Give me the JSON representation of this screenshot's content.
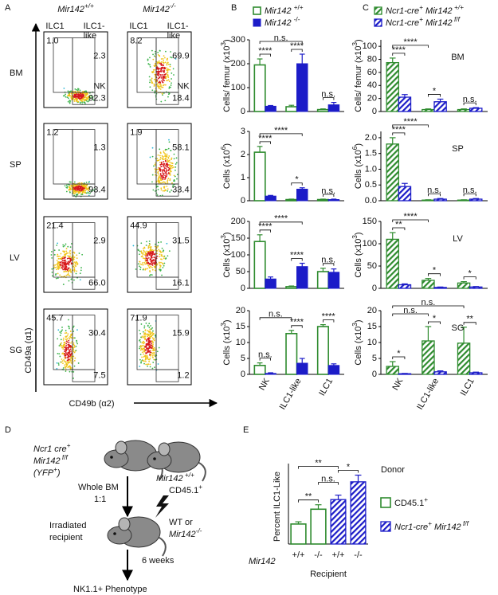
{
  "panel_letters": [
    "A",
    "B",
    "C",
    "D",
    "E"
  ],
  "panel_a": {
    "columns": [
      [
        [
          "Mir142",
          "i"
        ],
        [
          "+/+",
          "isup"
        ]
      ],
      [
        [
          "Mir142",
          "i"
        ],
        [
          "-/-",
          "isup"
        ]
      ]
    ],
    "gate_labels": [
      "ILC1",
      "ILC1-",
      "like",
      "NK"
    ],
    "rows": [
      {
        "tissue": "BM",
        "plots": [
          [
            "1.0",
            "2.3",
            "92.3"
          ],
          [
            "8.2",
            "69.9",
            "18.4"
          ]
        ]
      },
      {
        "tissue": "SP",
        "plots": [
          [
            "1.2",
            "1.3",
            "93.4"
          ],
          [
            "1.9",
            "58.1",
            "33.4"
          ]
        ]
      },
      {
        "tissue": "LV",
        "plots": [
          [
            "21.4",
            "2.9",
            "66.0"
          ],
          [
            "44.9",
            "31.5",
            "16.1"
          ]
        ]
      },
      {
        "tissue": "SG",
        "plots": [
          [
            "45.7",
            "30.4",
            "7.5"
          ],
          [
            "71.9",
            "15.9",
            "1.2"
          ]
        ]
      }
    ],
    "y_axis": "CD49a (α1)",
    "x_axis": "CD49b (α2)"
  },
  "panel_b": {
    "legend": [
      [
        [
          "Mir142 ",
          "i"
        ],
        [
          "+/+",
          "sup"
        ]
      ],
      [
        [
          "Mir142 ",
          "i"
        ],
        [
          "-/-",
          "sup"
        ]
      ]
    ],
    "colors": [
      "#2e8b2e",
      "#1c1cc8"
    ],
    "fills": [
      "outline",
      "solid"
    ],
    "categories": [
      "NK",
      "ILC1-like",
      "ILC1"
    ],
    "charts": [
      {
        "ylabel": [
          [
            "Cells/ femur (x10",
            ""
          ],
          [
            "3",
            "sup"
          ],
          [
            ")",
            ""
          ]
        ],
        "ylim": [
          0,
          300
        ],
        "yticks": [
          0,
          100,
          200,
          300
        ],
        "series": [
          {
            "values": [
              195,
              20,
              8
            ],
            "errors": [
              25,
              6,
              3
            ]
          },
          {
            "values": [
              22,
              200,
              28
            ],
            "errors": [
              3,
              40,
              10
            ]
          }
        ],
        "annotations": [
          "n.s.",
          "****",
          "****",
          "n.s."
        ]
      },
      {
        "ylabel": [
          [
            "Cells (x10",
            ""
          ],
          [
            "6",
            "sup"
          ],
          [
            ")",
            ""
          ]
        ],
        "ylim": [
          0,
          3
        ],
        "yticks": [
          0,
          1,
          2,
          3
        ],
        "series": [
          {
            "values": [
              2.1,
              0.05,
              0.05
            ],
            "errors": [
              0.25,
              0.02,
              0.02
            ]
          },
          {
            "values": [
              0.2,
              0.5,
              0.05
            ],
            "errors": [
              0.03,
              0.06,
              0.02
            ]
          }
        ],
        "annotations": [
          "****",
          "****",
          "*",
          "n.s."
        ]
      },
      {
        "ylabel": [
          [
            "Cells (x10",
            ""
          ],
          [
            "3",
            "sup"
          ],
          [
            ")",
            ""
          ]
        ],
        "ylim": [
          0,
          200
        ],
        "yticks": [
          0,
          50,
          100,
          150,
          200
        ],
        "series": [
          {
            "values": [
              140,
              5,
              50
            ],
            "errors": [
              20,
              2,
              10
            ]
          },
          {
            "values": [
              28,
              65,
              48
            ],
            "errors": [
              6,
              10,
              10
            ]
          }
        ],
        "annotations": [
          "****",
          "****",
          "****",
          "n.s."
        ]
      },
      {
        "ylabel": [
          [
            "Cells (x10",
            ""
          ],
          [
            "3",
            "sup"
          ],
          [
            ")",
            ""
          ]
        ],
        "ylim": [
          0,
          20
        ],
        "yticks": [
          0,
          5,
          10,
          15,
          20
        ],
        "series": [
          {
            "values": [
              2.8,
              12.8,
              15
            ],
            "errors": [
              0.8,
              1.0,
              0.6
            ]
          },
          {
            "values": [
              0.3,
              3.5,
              2.8
            ],
            "errors": [
              0.2,
              1.5,
              0.5
            ]
          }
        ],
        "annotations": [
          "n.s.",
          "n.s.",
          "****",
          "****"
        ]
      }
    ]
  },
  "panel_c": {
    "legend": [
      [
        [
          "Ncr1-cre",
          "i"
        ],
        [
          "+",
          "isup"
        ],
        [
          " Mir142",
          "i"
        ],
        [
          " +/+",
          "isup"
        ]
      ],
      [
        [
          "Ncr1-cre",
          "i"
        ],
        [
          "+",
          "isup"
        ],
        [
          " Mir142",
          "i"
        ],
        [
          " f/f",
          "isup"
        ]
      ]
    ],
    "colors": [
      "#2e8b2e",
      "#1c1cc8"
    ],
    "fills": [
      "hatch",
      "hatch"
    ],
    "categories": [
      "NK",
      "ILC1-like",
      "ILC1"
    ],
    "charts": [
      {
        "tissue": "BM",
        "ylabel": [
          [
            "Cells/ femur (x10",
            ""
          ],
          [
            "3",
            "sup"
          ],
          [
            ")",
            ""
          ]
        ],
        "ylim": [
          0,
          110
        ],
        "yticks": [
          0,
          20,
          40,
          60,
          80,
          100
        ],
        "series": [
          {
            "values": [
              75,
              3,
              3
            ],
            "errors": [
              7,
              1,
              1
            ]
          },
          {
            "values": [
              22,
              15,
              5
            ],
            "errors": [
              4,
              4,
              1
            ]
          }
        ],
        "annotations": [
          "****",
          "****",
          "*",
          "n.s."
        ]
      },
      {
        "tissue": "SP",
        "ylabel": [
          [
            "Cells (x10",
            ""
          ],
          [
            "6",
            "sup"
          ],
          [
            ")",
            ""
          ]
        ],
        "ylim": [
          0,
          2.2
        ],
        "yticks": [
          {
            "value": 0,
            "label": "0.0"
          },
          {
            "value": 0.5,
            "label": "0.5"
          },
          {
            "value": 1,
            "label": "1.0"
          },
          {
            "value": 1.5,
            "label": "1.5"
          },
          {
            "value": 2,
            "label": "2.0"
          }
        ],
        "series": [
          {
            "values": [
              1.8,
              0.02,
              0.02
            ],
            "errors": [
              0.2,
              0.01,
              0.01
            ]
          },
          {
            "values": [
              0.45,
              0.05,
              0.05
            ],
            "errors": [
              0.1,
              0.02,
              0.02
            ]
          }
        ],
        "annotations": [
          "****",
          "****",
          "n.s.",
          "n.s."
        ]
      },
      {
        "tissue": "LV",
        "ylabel": [
          [
            "Cells (x10",
            ""
          ],
          [
            "3",
            "sup"
          ],
          [
            ")",
            ""
          ]
        ],
        "ylim": [
          0,
          150
        ],
        "yticks": [
          0,
          50,
          100,
          150
        ],
        "series": [
          {
            "values": [
              110,
              18,
              12
            ],
            "errors": [
              15,
              4,
              3
            ]
          },
          {
            "values": [
              8,
              2,
              3
            ],
            "errors": [
              2,
              1,
              1
            ]
          }
        ],
        "annotations": [
          "****",
          "**",
          "*",
          "*"
        ]
      },
      {
        "tissue": "SG",
        "ylabel": [
          [
            "Cells (x10",
            ""
          ],
          [
            "3",
            "sup"
          ],
          [
            ")",
            ""
          ]
        ],
        "ylim": [
          0,
          20
        ],
        "yticks": [
          0,
          5,
          10,
          15,
          20
        ],
        "series": [
          {
            "values": [
              2.5,
              10.5,
              9.8
            ],
            "errors": [
              1.5,
              4.5,
              5
            ]
          },
          {
            "values": [
              0.2,
              0.8,
              0.5
            ],
            "errors": [
              0.1,
              0.3,
              0.2
            ]
          }
        ],
        "annotations": [
          "n.s.",
          "n.s.",
          "*",
          "*",
          "**"
        ]
      }
    ]
  },
  "panel_d": {
    "texts": [
      [
        [
          "Ncr1 cre",
          "i"
        ],
        [
          "+",
          "isup"
        ]
      ],
      [
        [
          "Mir142",
          "i"
        ],
        [
          " f/f",
          "isup"
        ]
      ],
      [
        [
          "(YFP",
          "i"
        ],
        [
          "+",
          "isup"
        ],
        [
          ")",
          "i"
        ]
      ],
      [
        [
          "Mir142",
          "i"
        ],
        [
          " +/+",
          "isup"
        ]
      ],
      [
        [
          "CD45.1",
          ""
        ],
        [
          "+",
          "sup"
        ]
      ],
      [
        [
          "Whole BM",
          ""
        ]
      ],
      [
        [
          "1:1",
          ""
        ]
      ],
      [
        [
          "Irradiated",
          ""
        ]
      ],
      [
        [
          "recipient",
          ""
        ]
      ],
      [
        [
          "WT or",
          ""
        ]
      ],
      [
        [
          "Mir142",
          "i"
        ],
        [
          "-/-",
          "isup"
        ]
      ],
      [
        [
          "6 weeks",
          ""
        ]
      ],
      [
        [
          "NK1.1+ Phenotype",
          ""
        ]
      ]
    ]
  },
  "panel_e": {
    "ylabel": "Percent  ILC1-Like",
    "ylim": [
      0,
      50
    ],
    "values": [
      13.5,
      23.5,
      30,
      42
    ],
    "errors": [
      1.5,
      3,
      3,
      4.5
    ],
    "categories": [
      "+/+",
      "-/-",
      "+/+",
      "-/-"
    ],
    "bar_colors": [
      "#2e8b2e",
      "#2e8b2e",
      "#1c1cc8",
      "#1c1cc8"
    ],
    "bar_fills": [
      "outline",
      "outline",
      "hatch",
      "hatch"
    ],
    "row_label": "Mir142",
    "xlabel": "Recipient",
    "legend_title": "Donor",
    "legend": [
      [
        [
          "CD45.1",
          ""
        ],
        [
          "+",
          "sup"
        ]
      ],
      [
        [
          "Ncr1-cre",
          "i"
        ],
        [
          "+",
          "isup"
        ],
        [
          " Mir142",
          "i"
        ],
        [
          " f/f",
          "isup"
        ]
      ]
    ],
    "annotations": [
      "**",
      "n.s.",
      "*",
      "**"
    ]
  }
}
